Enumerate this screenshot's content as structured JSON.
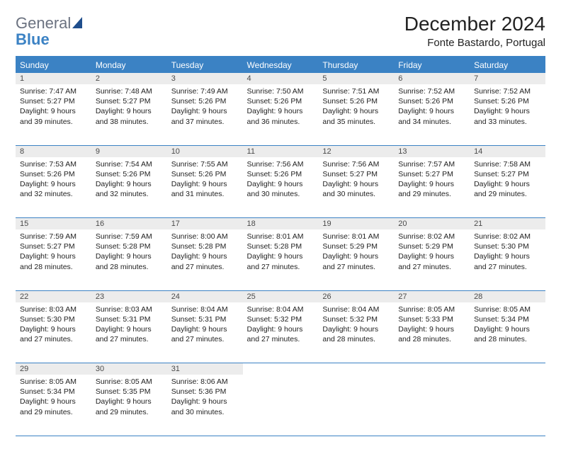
{
  "logo": {
    "word1": "General",
    "word2": "Blue"
  },
  "title": "December 2024",
  "subtitle": "Fonte Bastardo, Portugal",
  "colors": {
    "header_bg": "#3b82c4",
    "header_text": "#ffffff",
    "daynum_bg": "#ececec",
    "border": "#3b82c4",
    "page_bg": "#ffffff",
    "text": "#222222",
    "logo_gray": "#6b7280",
    "logo_blue": "#3b82c4"
  },
  "weekdays": [
    "Sunday",
    "Monday",
    "Tuesday",
    "Wednesday",
    "Thursday",
    "Friday",
    "Saturday"
  ],
  "weeks": [
    [
      {
        "n": "1",
        "sunrise": "Sunrise: 7:47 AM",
        "sunset": "Sunset: 5:27 PM",
        "day1": "Daylight: 9 hours",
        "day2": "and 39 minutes."
      },
      {
        "n": "2",
        "sunrise": "Sunrise: 7:48 AM",
        "sunset": "Sunset: 5:27 PM",
        "day1": "Daylight: 9 hours",
        "day2": "and 38 minutes."
      },
      {
        "n": "3",
        "sunrise": "Sunrise: 7:49 AM",
        "sunset": "Sunset: 5:26 PM",
        "day1": "Daylight: 9 hours",
        "day2": "and 37 minutes."
      },
      {
        "n": "4",
        "sunrise": "Sunrise: 7:50 AM",
        "sunset": "Sunset: 5:26 PM",
        "day1": "Daylight: 9 hours",
        "day2": "and 36 minutes."
      },
      {
        "n": "5",
        "sunrise": "Sunrise: 7:51 AM",
        "sunset": "Sunset: 5:26 PM",
        "day1": "Daylight: 9 hours",
        "day2": "and 35 minutes."
      },
      {
        "n": "6",
        "sunrise": "Sunrise: 7:52 AM",
        "sunset": "Sunset: 5:26 PM",
        "day1": "Daylight: 9 hours",
        "day2": "and 34 minutes."
      },
      {
        "n": "7",
        "sunrise": "Sunrise: 7:52 AM",
        "sunset": "Sunset: 5:26 PM",
        "day1": "Daylight: 9 hours",
        "day2": "and 33 minutes."
      }
    ],
    [
      {
        "n": "8",
        "sunrise": "Sunrise: 7:53 AM",
        "sunset": "Sunset: 5:26 PM",
        "day1": "Daylight: 9 hours",
        "day2": "and 32 minutes."
      },
      {
        "n": "9",
        "sunrise": "Sunrise: 7:54 AM",
        "sunset": "Sunset: 5:26 PM",
        "day1": "Daylight: 9 hours",
        "day2": "and 32 minutes."
      },
      {
        "n": "10",
        "sunrise": "Sunrise: 7:55 AM",
        "sunset": "Sunset: 5:26 PM",
        "day1": "Daylight: 9 hours",
        "day2": "and 31 minutes."
      },
      {
        "n": "11",
        "sunrise": "Sunrise: 7:56 AM",
        "sunset": "Sunset: 5:26 PM",
        "day1": "Daylight: 9 hours",
        "day2": "and 30 minutes."
      },
      {
        "n": "12",
        "sunrise": "Sunrise: 7:56 AM",
        "sunset": "Sunset: 5:27 PM",
        "day1": "Daylight: 9 hours",
        "day2": "and 30 minutes."
      },
      {
        "n": "13",
        "sunrise": "Sunrise: 7:57 AM",
        "sunset": "Sunset: 5:27 PM",
        "day1": "Daylight: 9 hours",
        "day2": "and 29 minutes."
      },
      {
        "n": "14",
        "sunrise": "Sunrise: 7:58 AM",
        "sunset": "Sunset: 5:27 PM",
        "day1": "Daylight: 9 hours",
        "day2": "and 29 minutes."
      }
    ],
    [
      {
        "n": "15",
        "sunrise": "Sunrise: 7:59 AM",
        "sunset": "Sunset: 5:27 PM",
        "day1": "Daylight: 9 hours",
        "day2": "and 28 minutes."
      },
      {
        "n": "16",
        "sunrise": "Sunrise: 7:59 AM",
        "sunset": "Sunset: 5:28 PM",
        "day1": "Daylight: 9 hours",
        "day2": "and 28 minutes."
      },
      {
        "n": "17",
        "sunrise": "Sunrise: 8:00 AM",
        "sunset": "Sunset: 5:28 PM",
        "day1": "Daylight: 9 hours",
        "day2": "and 27 minutes."
      },
      {
        "n": "18",
        "sunrise": "Sunrise: 8:01 AM",
        "sunset": "Sunset: 5:28 PM",
        "day1": "Daylight: 9 hours",
        "day2": "and 27 minutes."
      },
      {
        "n": "19",
        "sunrise": "Sunrise: 8:01 AM",
        "sunset": "Sunset: 5:29 PM",
        "day1": "Daylight: 9 hours",
        "day2": "and 27 minutes."
      },
      {
        "n": "20",
        "sunrise": "Sunrise: 8:02 AM",
        "sunset": "Sunset: 5:29 PM",
        "day1": "Daylight: 9 hours",
        "day2": "and 27 minutes."
      },
      {
        "n": "21",
        "sunrise": "Sunrise: 8:02 AM",
        "sunset": "Sunset: 5:30 PM",
        "day1": "Daylight: 9 hours",
        "day2": "and 27 minutes."
      }
    ],
    [
      {
        "n": "22",
        "sunrise": "Sunrise: 8:03 AM",
        "sunset": "Sunset: 5:30 PM",
        "day1": "Daylight: 9 hours",
        "day2": "and 27 minutes."
      },
      {
        "n": "23",
        "sunrise": "Sunrise: 8:03 AM",
        "sunset": "Sunset: 5:31 PM",
        "day1": "Daylight: 9 hours",
        "day2": "and 27 minutes."
      },
      {
        "n": "24",
        "sunrise": "Sunrise: 8:04 AM",
        "sunset": "Sunset: 5:31 PM",
        "day1": "Daylight: 9 hours",
        "day2": "and 27 minutes."
      },
      {
        "n": "25",
        "sunrise": "Sunrise: 8:04 AM",
        "sunset": "Sunset: 5:32 PM",
        "day1": "Daylight: 9 hours",
        "day2": "and 27 minutes."
      },
      {
        "n": "26",
        "sunrise": "Sunrise: 8:04 AM",
        "sunset": "Sunset: 5:32 PM",
        "day1": "Daylight: 9 hours",
        "day2": "and 28 minutes."
      },
      {
        "n": "27",
        "sunrise": "Sunrise: 8:05 AM",
        "sunset": "Sunset: 5:33 PM",
        "day1": "Daylight: 9 hours",
        "day2": "and 28 minutes."
      },
      {
        "n": "28",
        "sunrise": "Sunrise: 8:05 AM",
        "sunset": "Sunset: 5:34 PM",
        "day1": "Daylight: 9 hours",
        "day2": "and 28 minutes."
      }
    ],
    [
      {
        "n": "29",
        "sunrise": "Sunrise: 8:05 AM",
        "sunset": "Sunset: 5:34 PM",
        "day1": "Daylight: 9 hours",
        "day2": "and 29 minutes."
      },
      {
        "n": "30",
        "sunrise": "Sunrise: 8:05 AM",
        "sunset": "Sunset: 5:35 PM",
        "day1": "Daylight: 9 hours",
        "day2": "and 29 minutes."
      },
      {
        "n": "31",
        "sunrise": "Sunrise: 8:06 AM",
        "sunset": "Sunset: 5:36 PM",
        "day1": "Daylight: 9 hours",
        "day2": "and 30 minutes."
      },
      null,
      null,
      null,
      null
    ]
  ]
}
